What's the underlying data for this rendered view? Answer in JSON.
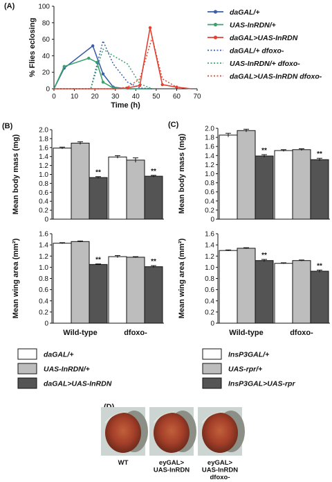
{
  "colors": {
    "white_bar": "#ffffff",
    "light_bar": "#bdbdbd",
    "dark_bar": "#545454",
    "blue": "#3a5fa8",
    "green": "#3aa36b",
    "red": "#e2412f"
  },
  "panel_d": {
    "label": "(D)",
    "captions": [
      "WT",
      "eyGAL>\nUAS-InRDN",
      "eyGAL>\nUAS-InRDN\ndfoxo-"
    ]
  },
  "chart_data": [
    {
      "panel": "(A)",
      "type": "line",
      "xlabel": "Time (h)",
      "ylabel": "% Flies eclosing",
      "xlim": [
        0,
        70
      ],
      "ylim": [
        0,
        100
      ],
      "xticks": [
        0,
        10,
        20,
        30,
        40,
        50,
        60,
        70
      ],
      "yticks": [
        0,
        20,
        40,
        60,
        80,
        100
      ],
      "series": [
        {
          "name": "daGAL/+",
          "color": "#3a5fa8",
          "style": "solid",
          "x": [
            0,
            5,
            19,
            24,
            29,
            36,
            48
          ],
          "y": [
            0,
            25,
            52,
            18,
            2,
            0,
            0
          ]
        },
        {
          "name": "UAS-InRDN/+",
          "color": "#3aa36b",
          "style": "solid",
          "x": [
            0,
            5,
            17,
            21,
            24,
            29,
            36,
            48
          ],
          "y": [
            0,
            27,
            37,
            32,
            8,
            1,
            0,
            0
          ]
        },
        {
          "name": "daGAL>UAS-InRDN",
          "color": "#e2412f",
          "style": "solid",
          "x": [
            0,
            24,
            30,
            36,
            42,
            47,
            53,
            60,
            67
          ],
          "y": [
            0,
            0,
            0,
            1,
            4,
            74,
            5,
            2,
            0
          ]
        },
        {
          "name": "daGAL/+ dfoxo-",
          "color": "#3a5fa8",
          "style": "dotted",
          "x": [
            0,
            18,
            24,
            29,
            36,
            42,
            48
          ],
          "y": [
            0,
            0,
            58,
            30,
            8,
            1,
            0
          ]
        },
        {
          "name": "UAS-InRDN/+ dfoxo-",
          "color": "#3aa36b",
          "style": "dotted",
          "x": [
            0,
            18,
            24,
            29,
            36,
            42,
            48
          ],
          "y": [
            0,
            0,
            48,
            40,
            30,
            6,
            0
          ]
        },
        {
          "name": "daGAL>UAS-InRDN dfoxo-",
          "color": "#e2412f",
          "style": "dotted",
          "x": [
            0,
            30,
            36,
            42,
            48,
            53,
            60,
            67
          ],
          "y": [
            0,
            0,
            2,
            12,
            62,
            12,
            2,
            0
          ]
        }
      ]
    },
    {
      "panel": "(B)",
      "type": "bar",
      "ylabel": "Mean body mass (mg)",
      "ylim": [
        0,
        2.0
      ],
      "yticks": [
        "0",
        "0.2",
        "0.4",
        "0.6",
        "0.8",
        "1.0",
        "1.2",
        "1.4",
        "1.6",
        "1.8",
        "2.0"
      ],
      "categories": [
        "Wild-type",
        "dfoxo-"
      ],
      "series": [
        {
          "name": "daGAL/+",
          "values": [
            1.59,
            1.39
          ],
          "err": [
            0.02,
            0.03
          ],
          "stars": [
            "",
            ""
          ]
        },
        {
          "name": "UAS-InRDN/+",
          "values": [
            1.7,
            1.32
          ],
          "err": [
            0.03,
            0.05
          ],
          "stars": [
            "",
            ""
          ]
        },
        {
          "name": "daGAL>UAS-InRDN",
          "values": [
            0.93,
            0.96
          ],
          "err": [
            0.02,
            0.02
          ],
          "stars": [
            "**",
            "**"
          ]
        }
      ]
    },
    {
      "panel": "(B)",
      "type": "bar",
      "ylabel": "Mean wing area (mm²)",
      "ylim": [
        0,
        1.6
      ],
      "yticks": [
        "0",
        "0.2",
        "0.4",
        "0.6",
        "0.8",
        "1.0",
        "1.2",
        "1.4",
        "1.6"
      ],
      "categories": [
        "Wild-type",
        "dfoxo-"
      ],
      "series": [
        {
          "name": "daGAL/+",
          "values": [
            1.43,
            1.19
          ],
          "err": [
            0.01,
            0.02
          ],
          "stars": [
            "",
            ""
          ]
        },
        {
          "name": "UAS-InRDN/+",
          "values": [
            1.46,
            1.18
          ],
          "err": [
            0.01,
            0.01
          ],
          "stars": [
            "",
            ""
          ]
        },
        {
          "name": "daGAL>UAS-InRDN",
          "values": [
            1.05,
            1.01
          ],
          "err": [
            0.01,
            0.02
          ],
          "stars": [
            "**",
            "**"
          ]
        }
      ]
    },
    {
      "panel": "(C)",
      "type": "bar",
      "ylabel": "Mean body mass (mg)",
      "ylim": [
        0,
        2.0
      ],
      "yticks": [
        "0",
        "0.2",
        "0.4",
        "0.6",
        "0.8",
        "1.0",
        "1.2",
        "1.4",
        "1.6",
        "1.8",
        "2.0"
      ],
      "categories": [
        "Wild-type",
        "dfoxo-"
      ],
      "series": [
        {
          "name": "InsP3GAL/+",
          "values": [
            1.85,
            1.51
          ],
          "err": [
            0.04,
            0.02
          ],
          "stars": [
            "",
            ""
          ]
        },
        {
          "name": "UAS-rpr/+",
          "values": [
            1.95,
            1.53
          ],
          "err": [
            0.03,
            0.02
          ],
          "stars": [
            "",
            ""
          ]
        },
        {
          "name": "InsP3GAL>UAS-rpr",
          "values": [
            1.39,
            1.31
          ],
          "err": [
            0.03,
            0.03
          ],
          "stars": [
            "**",
            "**"
          ]
        }
      ]
    },
    {
      "panel": "(C)",
      "type": "bar",
      "ylabel": "Mean wing area (mm²)",
      "ylim": [
        0,
        1.6
      ],
      "yticks": [
        "0",
        "0.2",
        "0.4",
        "0.6",
        "0.8",
        "1.0",
        "1.2",
        "1.4",
        "1.6"
      ],
      "categories": [
        "Wild-type",
        "dfoxo-"
      ],
      "series": [
        {
          "name": "InsP3GAL/+",
          "values": [
            1.3,
            1.07
          ],
          "err": [
            0.01,
            0.01
          ],
          "stars": [
            "",
            ""
          ]
        },
        {
          "name": "UAS-rpr/+",
          "values": [
            1.34,
            1.12
          ],
          "err": [
            0.01,
            0.01
          ],
          "stars": [
            "",
            ""
          ]
        },
        {
          "name": "InsP3GAL>UAS-rpr",
          "values": [
            1.12,
            0.93
          ],
          "err": [
            0.02,
            0.02
          ],
          "stars": [
            "**",
            "**"
          ]
        }
      ]
    }
  ]
}
